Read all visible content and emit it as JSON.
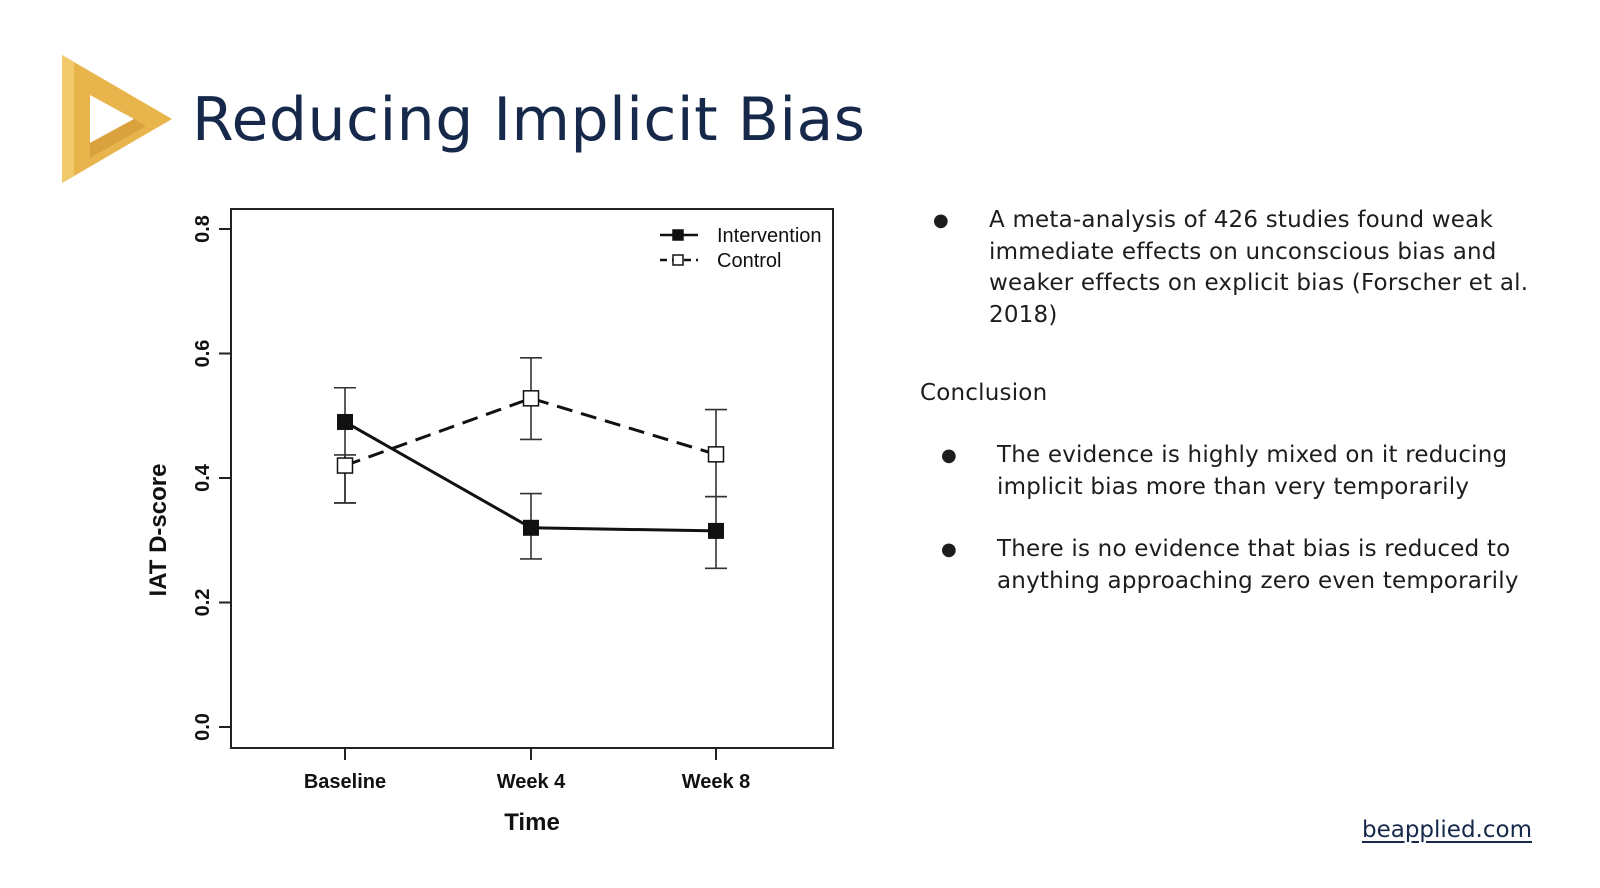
{
  "slide": {
    "title": "Reducing Implicit Bias",
    "footer_link": "beapplied.com",
    "brand_colors": {
      "logo_gold": "#e8b44c",
      "logo_gold_light": "#f4cf7a",
      "title_navy": "#16294a"
    }
  },
  "chart_data": {
    "type": "line",
    "xlabel": "Time",
    "ylabel": "IAT D-score",
    "categories": [
      "Baseline",
      "Week 4",
      "Week 8"
    ],
    "y_ticks": [
      "0.0",
      "0.2",
      "0.4",
      "0.6",
      "0.8"
    ],
    "ylim": [
      0,
      0.8
    ],
    "grid": false,
    "legend_position": "top-right",
    "series": [
      {
        "name": "Intervention",
        "values": [
          0.49,
          0.32,
          0.315
        ],
        "error_low": [
          0.36,
          0.27,
          0.255
        ],
        "error_high": [
          0.545,
          0.375,
          0.37
        ],
        "line_style": "solid",
        "marker": "filled-square"
      },
      {
        "name": "Control",
        "values": [
          0.42,
          0.528,
          0.438
        ],
        "error_low": [
          0.36,
          0.462,
          0.37
        ],
        "error_high": [
          0.437,
          0.593,
          0.51
        ],
        "line_style": "dashed",
        "marker": "open-square"
      }
    ]
  },
  "panel": {
    "bullet_symbol": "●",
    "intro_bullet": "A meta-analysis of 426 studies found weak immediate effects on unconscious bias and weaker effects on explicit bias (Forscher et al. 2018)",
    "conclusion_heading": "Conclusion",
    "conclusion_bullets": [
      "The evidence is highly mixed on it reducing implicit bias more than very temporarily",
      "There is no evidence that bias is reduced to anything approaching zero even temporarily"
    ]
  }
}
